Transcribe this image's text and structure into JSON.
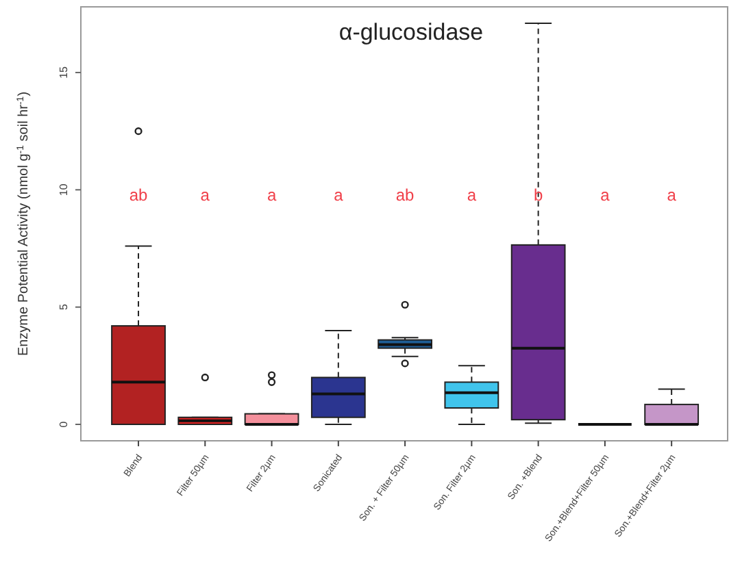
{
  "chart_data": {
    "type": "box",
    "title": "α-glucosidase",
    "ylabel": "Enzyme Potential Activity (nmol g$^{-1}$ soil hr$^{-1}$)",
    "categories": [
      "Blend",
      "Filter 50µm",
      "Filter 2µm",
      "Sonicated",
      "Son. + Filter 50µm",
      "Son. Filter 2µm",
      "Son. +Blend",
      "Son.+Blend+Filter 50µm",
      "Son.+Blend+Filter 2µm"
    ],
    "colors": [
      "#b22222",
      "#dd2222",
      "#f4909c",
      "#2b3590",
      "#1f5e96",
      "#40c4ec",
      "#682d8e",
      "#111111",
      "#c596c8"
    ],
    "boxes": [
      {
        "low": 0,
        "q1": 0,
        "median": 1.8,
        "q3": 4.2,
        "high": 7.6,
        "outliers": [
          12.5
        ]
      },
      {
        "low": 0,
        "q1": 0,
        "median": 0.15,
        "q3": 0.3,
        "high": 0.3,
        "outliers": [
          2.0
        ]
      },
      {
        "low": 0,
        "q1": 0,
        "median": 0,
        "q3": 0.45,
        "high": 0.45,
        "outliers": [
          1.8,
          2.1
        ]
      },
      {
        "low": 0,
        "q1": 0.3,
        "median": 1.3,
        "q3": 2.0,
        "high": 4.0
      },
      {
        "low": 2.9,
        "q1": 3.25,
        "median": 3.4,
        "q3": 3.6,
        "high": 3.7,
        "outliers": [
          5.1,
          2.6
        ]
      },
      {
        "low": 0,
        "q1": 0.7,
        "median": 1.35,
        "q3": 1.8,
        "high": 2.5
      },
      {
        "low": 0.05,
        "q1": 0.2,
        "median": 3.25,
        "q3": 7.65,
        "high": 17.1
      },
      {
        "low": 0,
        "q1": 0,
        "median": 0,
        "q3": 0,
        "high": 0
      },
      {
        "low": 0,
        "q1": 0,
        "median": 0,
        "q3": 0.85,
        "high": 1.5
      }
    ],
    "ylim": [
      -0.7,
      17.8
    ],
    "yticks": [
      0,
      5,
      10,
      15
    ],
    "grid": false,
    "annotations": [
      "ab",
      "a",
      "a",
      "a",
      "ab",
      "a",
      "b",
      "a",
      "a"
    ]
  }
}
